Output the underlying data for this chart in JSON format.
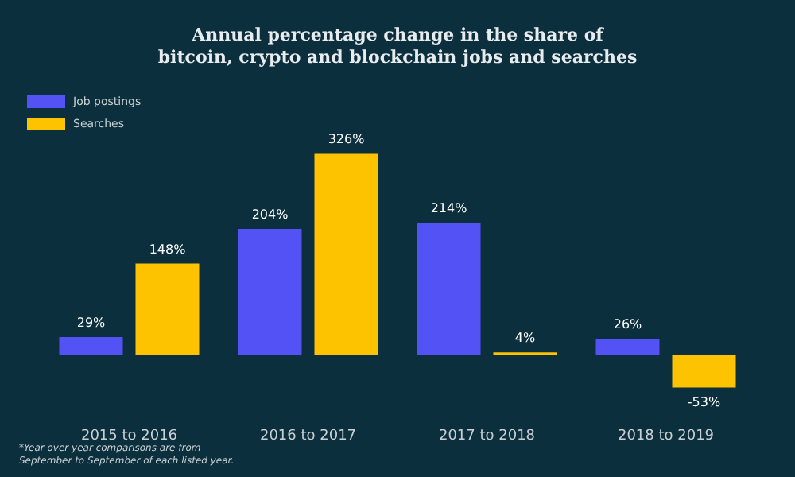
{
  "chart_data": {
    "type": "bar",
    "title": "Annual percentage change in the share of\nbitcoin, crypto and blockchain jobs and searches",
    "categories": [
      "2015 to 2016",
      "2016 to 2017",
      "2017 to 2018",
      "2018 to 2019"
    ],
    "series": [
      {
        "name": "Job postings",
        "color": "#5252f5",
        "values": [
          29,
          204,
          214,
          26
        ],
        "value_labels": [
          "29%",
          "204%",
          "214%",
          "26%"
        ]
      },
      {
        "name": "Searches",
        "color": "#fdc300",
        "values": [
          148,
          326,
          4,
          -53
        ],
        "value_labels": [
          "148%",
          "326%",
          "4%",
          "-53%"
        ]
      }
    ],
    "legend": "top left",
    "annotations": [
      "*Year over year comparisons are from\nSeptember to September of each listed year."
    ]
  }
}
